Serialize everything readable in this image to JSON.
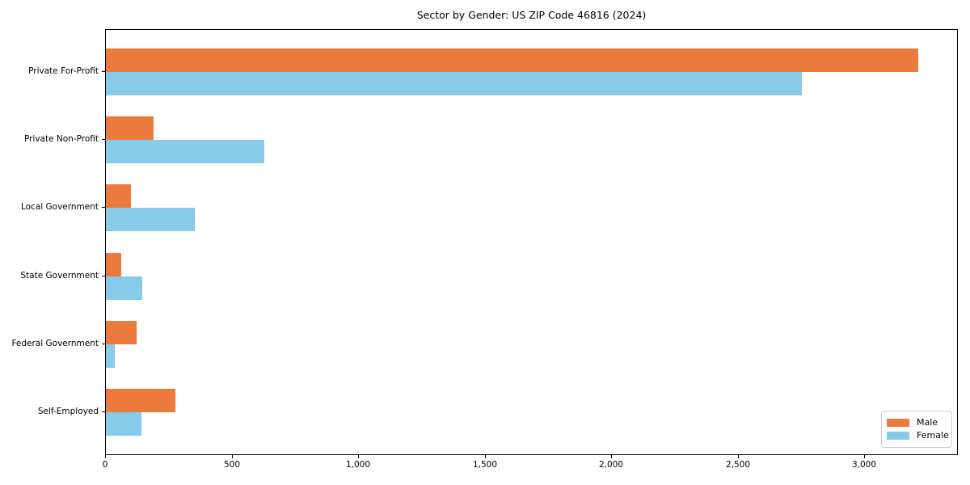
{
  "chart_data": {
    "type": "bar",
    "orientation": "horizontal",
    "title": "Sector by Gender: US ZIP Code 46816 (2024)",
    "categories": [
      "Private For-Profit",
      "Private Non-Profit",
      "Local Government",
      "State Government",
      "Federal Government",
      "Self-Employed"
    ],
    "series": [
      {
        "name": "Male",
        "color": "#ec7a3c",
        "values": [
          3210,
          190,
          100,
          60,
          120,
          275
        ]
      },
      {
        "name": "Female",
        "color": "#87cbe8",
        "values": [
          2750,
          625,
          350,
          145,
          35,
          140
        ]
      }
    ],
    "xlabel": "",
    "ylabel": "",
    "xlim": [
      0,
      3370
    ],
    "xticks": [
      0,
      500,
      1000,
      1500,
      2000,
      2500,
      3000
    ],
    "xtick_labels": [
      "0",
      "500",
      "1,000",
      "1,500",
      "2,000",
      "2,500",
      "3,000"
    ],
    "grid": false,
    "legend_position": "lower right"
  },
  "colors": {
    "male": "#ec7a3c",
    "female": "#87cbe8",
    "axis": "#000000",
    "background": "#ffffff",
    "legend_border": "#cccccc"
  }
}
